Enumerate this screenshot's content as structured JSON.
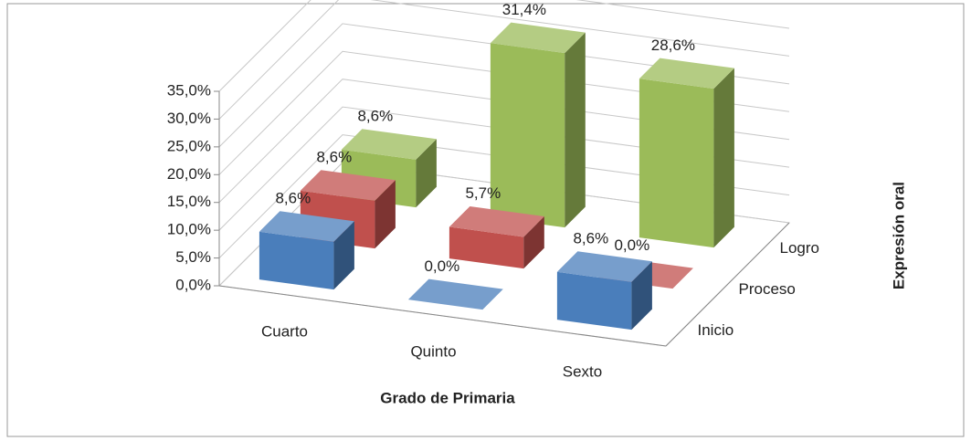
{
  "chart_data": {
    "type": "bar3d",
    "categories": [
      "Cuarto",
      "Quinto",
      "Sexto"
    ],
    "series": [
      {
        "name": "Inicio",
        "color": "#4a7ebb",
        "values": [
          8.6,
          0.0,
          8.6
        ],
        "value_labels": [
          "8,6%",
          "0,0%",
          "8,6%"
        ]
      },
      {
        "name": "Proceso",
        "color": "#c0504d",
        "values": [
          8.6,
          5.7,
          0.0
        ],
        "value_labels": [
          "8,6%",
          "5,7%",
          "0,0%"
        ]
      },
      {
        "name": "Logro",
        "color": "#9bbb59",
        "values": [
          8.6,
          31.4,
          28.6
        ],
        "value_labels": [
          "8,6%",
          "31,4%",
          "28,6%"
        ]
      }
    ],
    "ylim": [
      0,
      35
    ],
    "yticks": [
      {
        "value": 0,
        "label": "0,0%"
      },
      {
        "value": 5,
        "label": "5,0%"
      },
      {
        "value": 10,
        "label": "10,0%"
      },
      {
        "value": 15,
        "label": "15,0%"
      },
      {
        "value": 20,
        "label": "20,0%"
      },
      {
        "value": 25,
        "label": "25,0%"
      },
      {
        "value": 30,
        "label": "30,0%"
      },
      {
        "value": 35,
        "label": "35,0%"
      }
    ],
    "xlabel": "Grado de Primaria",
    "zlabel": "Expresión oral",
    "grid": true
  }
}
